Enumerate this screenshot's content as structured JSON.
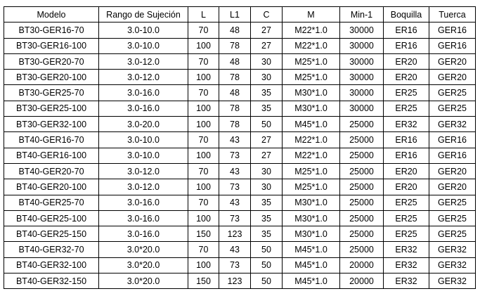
{
  "table": {
    "header": [
      "Modelo",
      "Rango de Sujeción",
      "L",
      "L1",
      "C",
      "M",
      "Min-1",
      "Boquilla",
      "Tuerca"
    ],
    "rows": [
      [
        "BT30-GER16-70",
        "3.0-10.0",
        "70",
        "48",
        "27",
        "M22*1.0",
        "30000",
        "ER16",
        "GER16"
      ],
      [
        "BT30-GER16-100",
        "3.0-10.0",
        "100",
        "78",
        "27",
        "M22*1.0",
        "30000",
        "ER16",
        "GER16"
      ],
      [
        "BT30-GER20-70",
        "3.0-12.0",
        "70",
        "48",
        "30",
        "M25*1.0",
        "30000",
        "ER20",
        "GER20"
      ],
      [
        "BT30-GER20-100",
        "3.0-12.0",
        "100",
        "78",
        "30",
        "M25*1.0",
        "30000",
        "ER20",
        "GER20"
      ],
      [
        "BT30-GER25-70",
        "3.0-16.0",
        "70",
        "48",
        "35",
        "M30*1.0",
        "30000",
        "ER25",
        "GER25"
      ],
      [
        "BT30-GER25-100",
        "3.0-16.0",
        "100",
        "78",
        "35",
        "M30*1.0",
        "30000",
        "ER25",
        "GER25"
      ],
      [
        "BT30-GER32-100",
        "3.0-20.0",
        "100",
        "78",
        "50",
        "M45*1.0",
        "25000",
        "ER32",
        "GER32"
      ],
      [
        "BT40-GER16-70",
        "3.0-10.0",
        "70",
        "43",
        "27",
        "M22*1.0",
        "25000",
        "ER16",
        "GER16"
      ],
      [
        "BT40-GER16-100",
        "3.0-10.0",
        "100",
        "73",
        "27",
        "M22*1.0",
        "25000",
        "ER16",
        "GER16"
      ],
      [
        "BT40-GER20-70",
        "3.0-12.0",
        "70",
        "43",
        "30",
        "M25*1.0",
        "25000",
        "ER20",
        "GER20"
      ],
      [
        "BT40-GER20-100",
        "3.0-12.0",
        "100",
        "73",
        "30",
        "M25*1.0",
        "25000",
        "ER20",
        "GER20"
      ],
      [
        "BT40-GER25-70",
        "3.0-16.0",
        "70",
        "43",
        "35",
        "M30*1.0",
        "25000",
        "ER25",
        "GER25"
      ],
      [
        "BT40-GER25-100",
        "3.0-16.0",
        "100",
        "73",
        "35",
        "M30*1.0",
        "25000",
        "ER25",
        "GER25"
      ],
      [
        "BT40-GER25-150",
        "3.0-16.0",
        "150",
        "123",
        "35",
        "M30*1.0",
        "25000",
        "ER25",
        "GER25"
      ],
      [
        "BT40-GER32-70",
        "3.0*20.0",
        "70",
        "43",
        "50",
        "M45*1.0",
        "25000",
        "ER32",
        "GER32"
      ],
      [
        "BT40-GER32-100",
        "3.0*20.0",
        "100",
        "73",
        "50",
        "M45*1.0",
        "20000",
        "ER32",
        "GER32"
      ],
      [
        "BT40-GER32-150",
        "3.0*20.0",
        "150",
        "123",
        "50",
        "M45*1.0",
        "20000",
        "ER32",
        "GER32"
      ]
    ]
  }
}
